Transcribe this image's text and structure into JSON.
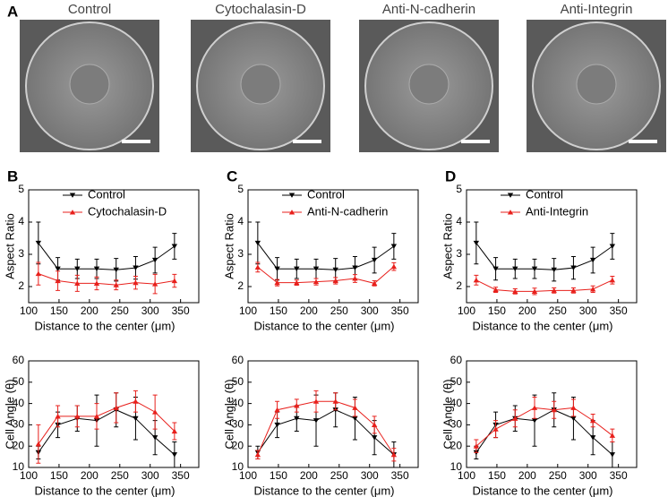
{
  "panel_labels": [
    "A",
    "B",
    "C",
    "D"
  ],
  "images": [
    {
      "title": "Control"
    },
    {
      "title": "Cytochalasin-D"
    },
    {
      "title": "Anti-N-cadherin"
    },
    {
      "title": "Anti-Integrin"
    }
  ],
  "chart_data": [
    {
      "type": "line",
      "xlabel": "Distance to the center (μm)",
      "ylabel": "Aspect Ratio",
      "legend": true,
      "x": [
        116,
        148,
        180,
        212,
        244,
        276,
        308,
        340
      ],
      "xlim": [
        100,
        380
      ],
      "xticks": [
        100,
        150,
        200,
        250,
        300,
        350
      ],
      "ylim": [
        1.5,
        5
      ],
      "yticks": [
        2,
        3,
        4,
        5
      ],
      "series": [
        {
          "name": "Control",
          "color": "#000000",
          "marker": "down",
          "values": [
            3.35,
            2.55,
            2.55,
            2.55,
            2.52,
            2.58,
            2.82,
            3.25
          ],
          "errors": [
            0.65,
            0.35,
            0.3,
            0.3,
            0.35,
            0.35,
            0.4,
            0.4
          ]
        },
        {
          "name": "Cytochalasin-D",
          "color": "#e8201c",
          "marker": "up",
          "values": [
            2.4,
            2.18,
            2.1,
            2.1,
            2.05,
            2.12,
            2.08,
            2.18
          ],
          "errors": [
            0.35,
            0.3,
            0.25,
            0.2,
            0.15,
            0.2,
            0.3,
            0.2
          ]
        }
      ]
    },
    {
      "type": "line",
      "xlabel": "Distance to the center (μm)",
      "ylabel": "Aspect Ratio",
      "legend": true,
      "x": [
        116,
        148,
        180,
        212,
        244,
        276,
        308,
        340
      ],
      "xlim": [
        100,
        380
      ],
      "xticks": [
        100,
        150,
        200,
        250,
        300,
        350
      ],
      "ylim": [
        1.5,
        5
      ],
      "yticks": [
        2,
        3,
        4,
        5
      ],
      "series": [
        {
          "name": "Control",
          "color": "#000000",
          "marker": "down",
          "values": [
            3.35,
            2.55,
            2.55,
            2.55,
            2.52,
            2.58,
            2.82,
            3.25
          ],
          "errors": [
            0.65,
            0.35,
            0.3,
            0.3,
            0.35,
            0.35,
            0.4,
            0.4
          ]
        },
        {
          "name": "Anti-N-cadherin",
          "color": "#e8201c",
          "marker": "up",
          "values": [
            2.6,
            2.12,
            2.12,
            2.15,
            2.18,
            2.25,
            2.1,
            2.62
          ],
          "errors": [
            0.15,
            0.1,
            0.08,
            0.1,
            0.1,
            0.12,
            0.08,
            0.12
          ]
        }
      ]
    },
    {
      "type": "line",
      "xlabel": "Distance to the center (μm)",
      "ylabel": "Aspect Ratio",
      "legend": true,
      "x": [
        116,
        148,
        180,
        212,
        244,
        276,
        308,
        340
      ],
      "xlim": [
        100,
        380
      ],
      "xticks": [
        100,
        150,
        200,
        250,
        300,
        350
      ],
      "ylim": [
        1.5,
        5
      ],
      "yticks": [
        2,
        3,
        4,
        5
      ],
      "series": [
        {
          "name": "Control",
          "color": "#000000",
          "marker": "down",
          "values": [
            3.35,
            2.55,
            2.55,
            2.55,
            2.52,
            2.58,
            2.82,
            3.25
          ],
          "errors": [
            0.65,
            0.35,
            0.3,
            0.3,
            0.35,
            0.35,
            0.4,
            0.4
          ]
        },
        {
          "name": "Anti-Integrin",
          "color": "#e8201c",
          "marker": "up",
          "values": [
            2.2,
            1.9,
            1.85,
            1.85,
            1.88,
            1.88,
            1.92,
            2.2
          ],
          "errors": [
            0.15,
            0.08,
            0.08,
            0.1,
            0.08,
            0.08,
            0.1,
            0.12
          ]
        }
      ]
    },
    {
      "type": "line",
      "xlabel": "Distance to the center (μm)",
      "ylabel": "Cell Angle (θ)",
      "legend": false,
      "x": [
        116,
        148,
        180,
        212,
        244,
        276,
        308,
        340
      ],
      "xlim": [
        100,
        380
      ],
      "xticks": [
        100,
        150,
        200,
        250,
        300,
        350
      ],
      "ylim": [
        10,
        60
      ],
      "yticks": [
        10,
        20,
        30,
        40,
        50,
        60
      ],
      "series": [
        {
          "color": "#000000",
          "marker": "down",
          "values": [
            17,
            30,
            33,
            32,
            37,
            33,
            24,
            16
          ],
          "errors": [
            3,
            6,
            6,
            12,
            8,
            10,
            8,
            6
          ]
        },
        {
          "color": "#e8201c",
          "marker": "up",
          "values": [
            21,
            34,
            34,
            34,
            38,
            41,
            36,
            27
          ],
          "errors": [
            9,
            5,
            5,
            6,
            7,
            5,
            8,
            4
          ]
        }
      ]
    },
    {
      "type": "line",
      "xlabel": "Distance to the center (μm)",
      "ylabel": "Cell Angle (θ)",
      "legend": false,
      "x": [
        116,
        148,
        180,
        212,
        244,
        276,
        308,
        340
      ],
      "xlim": [
        100,
        380
      ],
      "xticks": [
        100,
        150,
        200,
        250,
        300,
        350
      ],
      "ylim": [
        10,
        60
      ],
      "yticks": [
        10,
        20,
        30,
        40,
        50,
        60
      ],
      "series": [
        {
          "color": "#000000",
          "marker": "down",
          "values": [
            17,
            30,
            33,
            32,
            37,
            33,
            24,
            16
          ],
          "errors": [
            3,
            6,
            6,
            12,
            8,
            10,
            8,
            6
          ]
        },
        {
          "color": "#e8201c",
          "marker": "up",
          "values": [
            16,
            37,
            39,
            41,
            41,
            38,
            30,
            16
          ],
          "errors": [
            2,
            4,
            3,
            5,
            4,
            4,
            4,
            3
          ]
        }
      ]
    },
    {
      "type": "line",
      "xlabel": "Distance to the center (μm)",
      "ylabel": "Cell Angle (θ)",
      "legend": false,
      "x": [
        116,
        148,
        180,
        212,
        244,
        276,
        308,
        340
      ],
      "xlim": [
        100,
        380
      ],
      "xticks": [
        100,
        150,
        200,
        250,
        300,
        350
      ],
      "ylim": [
        10,
        60
      ],
      "yticks": [
        10,
        20,
        30,
        40,
        50,
        60
      ],
      "series": [
        {
          "color": "#000000",
          "marker": "down",
          "values": [
            17,
            30,
            33,
            32,
            37,
            33,
            24,
            16
          ],
          "errors": [
            3,
            6,
            6,
            12,
            8,
            10,
            8,
            6
          ]
        },
        {
          "color": "#e8201c",
          "marker": "up",
          "values": [
            20,
            28,
            33,
            38,
            37,
            38,
            32,
            25
          ],
          "errors": [
            3,
            4,
            4,
            5,
            4,
            4,
            3,
            3
          ]
        }
      ]
    }
  ]
}
